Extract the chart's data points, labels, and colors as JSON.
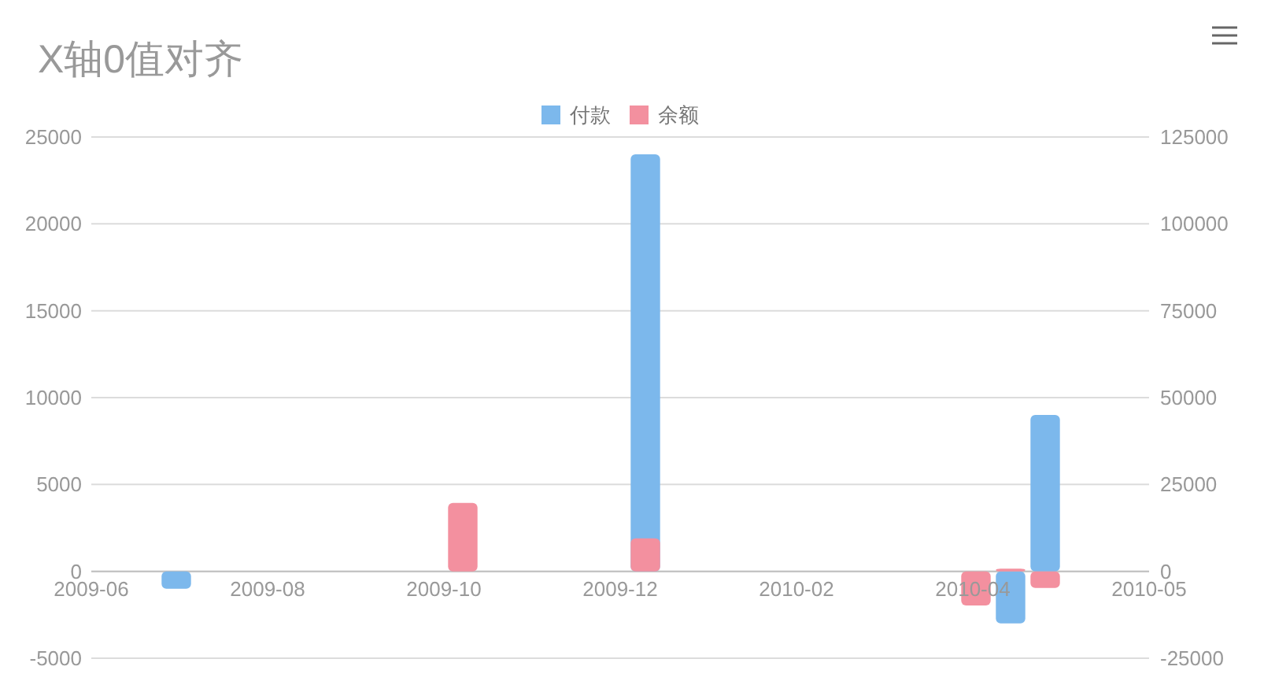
{
  "chart_data": {
    "type": "bar",
    "title": "X轴0值对齐",
    "legend": "top",
    "grid": "y",
    "xlim": [
      "2009-06-28",
      "2010-05-30"
    ],
    "xticks": [
      {
        "value": "2009-06-28",
        "label": "2009-06"
      },
      {
        "value": "2009-08-23",
        "label": "2009-08"
      },
      {
        "value": "2009-10-18",
        "label": "2009-10"
      },
      {
        "value": "2009-12-13",
        "label": "2009-12"
      },
      {
        "value": "2010-02-07",
        "label": "2010-02"
      },
      {
        "value": "2010-04-04",
        "label": "2010-04"
      },
      {
        "value": "2010-05-30",
        "label": "2010-05"
      }
    ],
    "ylim": [
      -5000,
      25000
    ],
    "yticks": [
      -5000,
      0,
      5000,
      10000,
      15000,
      20000,
      25000
    ],
    "y2lim": [
      -25000,
      125000
    ],
    "y2ticks": [
      -25000,
      0,
      25000,
      50000,
      75000,
      100000,
      125000
    ],
    "series": [
      {
        "name": "付款",
        "color": "#7cb8ec",
        "x": [
          "2009-07-25",
          "2009-12-21",
          "2010-04-16",
          "2010-04-27"
        ],
        "values": [
          -1000,
          24000,
          -3000,
          9000
        ]
      },
      {
        "name": "余额",
        "color": "#f3909f",
        "axis": "y2",
        "x": [
          "2009-10-24",
          "2009-12-21",
          "2010-04-05",
          "2010-04-16",
          "2010-04-27"
        ],
        "values": [
          19700,
          9500,
          -9800,
          800,
          -4800
        ]
      }
    ]
  }
}
